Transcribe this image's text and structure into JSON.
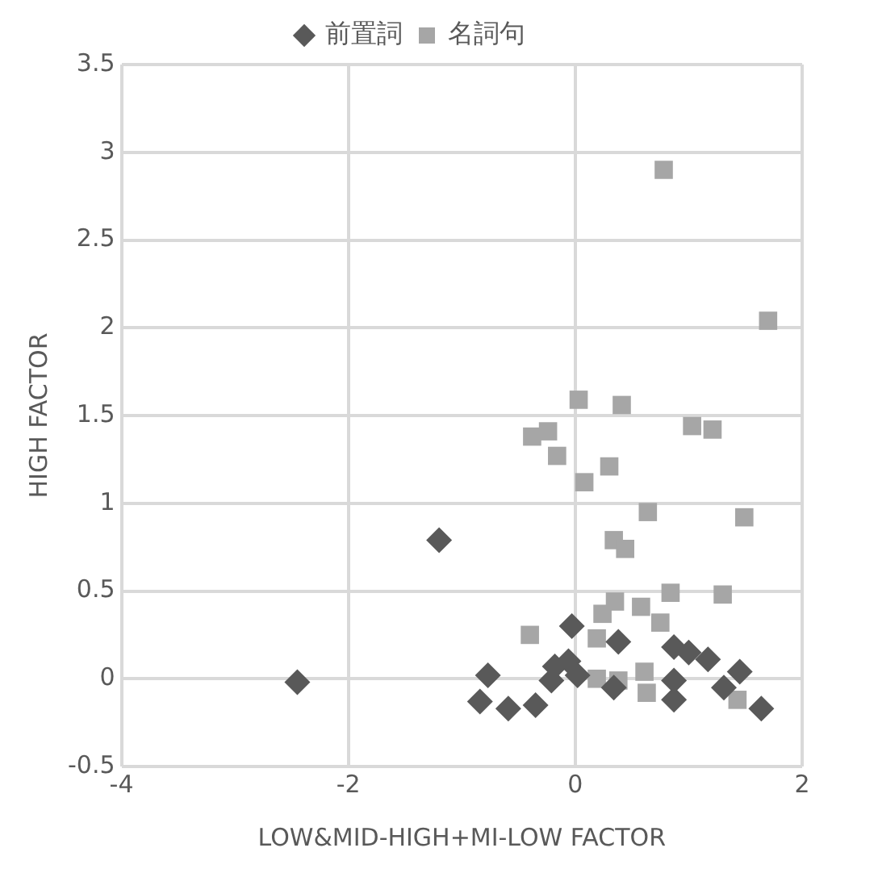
{
  "chart_data": {
    "type": "scatter",
    "xlabel": "LOW&MID-HIGH+MI-LOW FACTOR",
    "ylabel": "HIGH FACTOR",
    "xlim": [
      -4,
      2
    ],
    "xticks": [
      -4,
      -2,
      0,
      2
    ],
    "ylim": [
      -0.5,
      3.5
    ],
    "yticks": [
      -0.5,
      0,
      0.5,
      1,
      1.5,
      2,
      2.5,
      3,
      3.5
    ],
    "grid": true,
    "legend": "top",
    "series": [
      {
        "name": "前置詞",
        "color": "#595959",
        "marker": "diamond",
        "x": [
          -1.2,
          -2.45,
          -0.77,
          -0.84,
          -0.59,
          -0.35,
          -0.03,
          -0.18,
          -0.06,
          -0.21,
          0.02,
          0.38,
          0.34,
          0.87,
          1.0,
          1.17,
          0.87,
          0.87,
          1.45,
          1.31,
          1.64
        ],
        "values": [
          0.79,
          -0.02,
          0.02,
          -0.13,
          -0.17,
          -0.15,
          0.3,
          0.07,
          0.1,
          -0.01,
          0.02,
          0.21,
          -0.05,
          0.18,
          0.15,
          0.11,
          -0.01,
          -0.12,
          0.04,
          -0.05,
          -0.17
        ]
      },
      {
        "name": "名詞句",
        "color": "#a6a6a6",
        "marker": "square",
        "x": [
          0.78,
          1.7,
          0.03,
          0.41,
          -0.38,
          -0.24,
          -0.16,
          1.03,
          1.21,
          0.3,
          0.08,
          1.49,
          0.64,
          0.34,
          0.44,
          -0.4,
          0.84,
          1.3,
          0.35,
          0.58,
          0.24,
          0.75,
          0.19,
          0.19,
          0.38,
          0.61,
          0.63,
          1.43
        ],
        "values": [
          2.9,
          2.04,
          1.59,
          1.56,
          1.38,
          1.41,
          1.27,
          1.44,
          1.42,
          1.21,
          1.12,
          0.92,
          0.95,
          0.79,
          0.74,
          0.25,
          0.49,
          0.48,
          0.44,
          0.41,
          0.37,
          0.32,
          0.23,
          0.0,
          -0.01,
          0.04,
          -0.08,
          -0.12
        ]
      }
    ]
  }
}
